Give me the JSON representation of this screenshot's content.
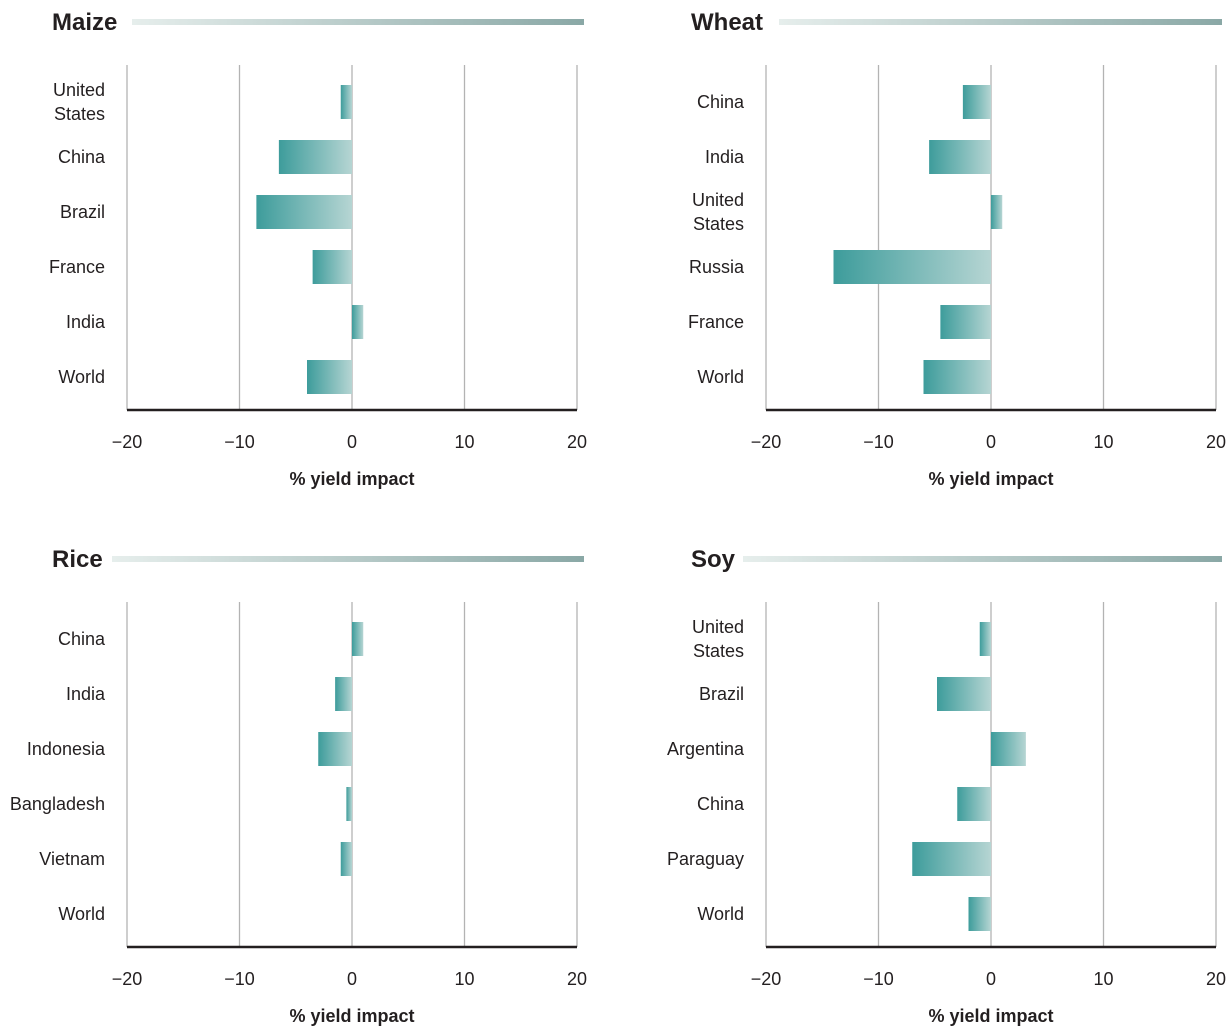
{
  "colors": {
    "bar_dark": "#3d9c9b",
    "bar_light": "#b6d5d3",
    "title_line_light": "#e6eeec",
    "title_line_dark": "#8aa8a6",
    "gridline": "#b3b3b3",
    "axis": "#231f20",
    "text": "#231f20"
  },
  "chart_data": [
    {
      "type": "bar",
      "orientation": "horizontal",
      "title": "Maize",
      "categories": [
        "United States",
        "China",
        "Brazil",
        "France",
        "India",
        "World"
      ],
      "values": [
        -1,
        -6.5,
        -8.5,
        -3.5,
        1,
        -4
      ],
      "xlabel": "% yield impact",
      "xlim": [
        -20,
        20
      ],
      "xticks": [
        -20,
        -10,
        0,
        10,
        20
      ],
      "xtick_labels": [
        "−20",
        "−10",
        "0",
        "10",
        "20"
      ],
      "grid": true
    },
    {
      "type": "bar",
      "orientation": "horizontal",
      "title": "Wheat",
      "categories": [
        "China",
        "India",
        "United States",
        "Russia",
        "France",
        "World"
      ],
      "values": [
        -2.5,
        -5.5,
        1,
        -14,
        -4.5,
        -6
      ],
      "xlabel": "% yield impact",
      "xlim": [
        -20,
        20
      ],
      "xticks": [
        -20,
        -10,
        0,
        10,
        20
      ],
      "xtick_labels": [
        "−20",
        "−10",
        "0",
        "10",
        "20"
      ],
      "grid": true
    },
    {
      "type": "bar",
      "orientation": "horizontal",
      "title": "Rice",
      "categories": [
        "China",
        "India",
        "Indonesia",
        "Bangladesh",
        "Vietnam",
        "World"
      ],
      "values": [
        1,
        -1.5,
        -3,
        -0.5,
        -1,
        0
      ],
      "xlabel": "% yield impact",
      "xlim": [
        -20,
        20
      ],
      "xticks": [
        -20,
        -10,
        0,
        10,
        20
      ],
      "xtick_labels": [
        "−20",
        "−10",
        "0",
        "10",
        "20"
      ],
      "grid": true
    },
    {
      "type": "bar",
      "orientation": "horizontal",
      "title": "Soy",
      "categories": [
        "United States",
        "Brazil",
        "Argentina",
        "China",
        "Paraguay",
        "World"
      ],
      "values": [
        -1,
        -4.8,
        3.1,
        -3,
        -7,
        -2
      ],
      "xlabel": "% yield impact",
      "xlim": [
        -20,
        20
      ],
      "xticks": [
        -20,
        -10,
        0,
        10,
        20
      ],
      "xtick_labels": [
        "−20",
        "−10",
        "0",
        "10",
        "20"
      ],
      "grid": true
    }
  ]
}
